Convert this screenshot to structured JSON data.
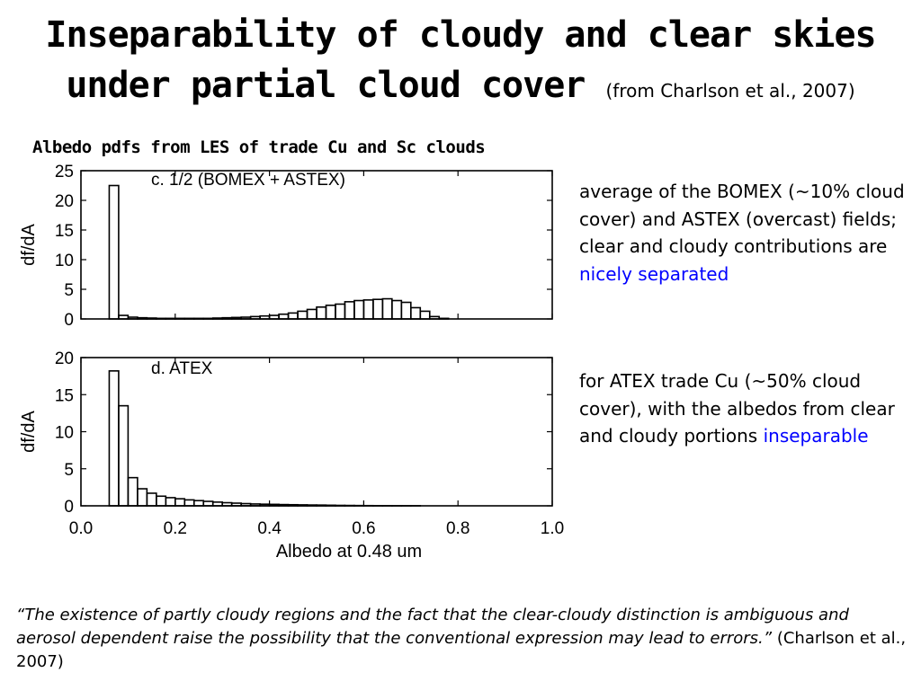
{
  "title": {
    "line1": "Inseparability of cloudy and clear skies",
    "line2": "under partial cloud cover",
    "citation": "(from Charlson et al., 2007)"
  },
  "subtitle": "Albedo pdfs from LES of trade Cu and Sc clouds",
  "notes": [
    {
      "text": "average of the BOMEX (~10% cloud cover) and ASTEX (overcast) fields; clear and cloudy contributions are ",
      "highlight": "nicely separated",
      "highlight_color": "#0000ff"
    },
    {
      "text": "for ATEX trade Cu (~50% cloud cover), with the albedos from clear and cloudy portions ",
      "highlight": "inseparable",
      "highlight_color": "#0000ff"
    }
  ],
  "quote": {
    "text": "“The existence of partly cloudy regions and the fact that the clear-cloudy distinction is ambiguous and aerosol dependent raise the possibility that the conventional expression may lead to errors.”",
    "citation": " (Charlson et al., 2007)"
  },
  "chart_data": [
    {
      "type": "histogram",
      "title": "c. 1/2 (BOMEX + ASTEX)",
      "ylabel": "df/dA",
      "xlim": [
        0,
        1.0
      ],
      "ylim": [
        0,
        25
      ],
      "yticks": [
        0,
        5,
        10,
        15,
        20,
        25
      ],
      "xticks": [
        0.0,
        0.2,
        0.4,
        0.6,
        0.8,
        1.0
      ],
      "x_tick_labels_shown": false,
      "bin_width": 0.02,
      "bins_start": [
        0.06,
        0.08,
        0.1,
        0.12,
        0.14,
        0.16,
        0.18,
        0.2,
        0.22,
        0.24,
        0.26,
        0.28,
        0.3,
        0.32,
        0.34,
        0.36,
        0.38,
        0.4,
        0.42,
        0.44,
        0.46,
        0.48,
        0.5,
        0.52,
        0.54,
        0.56,
        0.58,
        0.6,
        0.62,
        0.64,
        0.66,
        0.68,
        0.7,
        0.72,
        0.74,
        0.76,
        0.78
      ],
      "values": [
        22.5,
        0.6,
        0.3,
        0.2,
        0.15,
        0.1,
        0.1,
        0.1,
        0.1,
        0.1,
        0.1,
        0.15,
        0.2,
        0.25,
        0.3,
        0.4,
        0.5,
        0.6,
        0.8,
        1.0,
        1.3,
        1.6,
        2.0,
        2.3,
        2.5,
        2.9,
        3.1,
        3.2,
        3.3,
        3.4,
        3.1,
        2.8,
        1.9,
        1.3,
        0.4,
        0.1,
        0.0
      ]
    },
    {
      "type": "histogram",
      "title": "d. ATEX",
      "ylabel": "df/dA",
      "xlabel": "Albedo at 0.48 um",
      "xlim": [
        0,
        1.0
      ],
      "ylim": [
        0,
        20
      ],
      "yticks": [
        0,
        5,
        10,
        15,
        20
      ],
      "xticks": [
        0.0,
        0.2,
        0.4,
        0.6,
        0.8,
        1.0
      ],
      "x_tick_labels_shown": true,
      "bin_width": 0.02,
      "bins_start": [
        0.06,
        0.08,
        0.1,
        0.12,
        0.14,
        0.16,
        0.18,
        0.2,
        0.22,
        0.24,
        0.26,
        0.28,
        0.3,
        0.32,
        0.34,
        0.36,
        0.38,
        0.4,
        0.42,
        0.44,
        0.46,
        0.48,
        0.5,
        0.52,
        0.54,
        0.56,
        0.58,
        0.6,
        0.62,
        0.64,
        0.66,
        0.68,
        0.7,
        0.72
      ],
      "values": [
        18.2,
        13.5,
        3.8,
        2.3,
        1.7,
        1.3,
        1.1,
        0.95,
        0.8,
        0.7,
        0.6,
        0.5,
        0.42,
        0.36,
        0.3,
        0.25,
        0.22,
        0.2,
        0.17,
        0.15,
        0.13,
        0.11,
        0.1,
        0.08,
        0.06,
        0.05,
        0.04,
        0.03,
        0.02,
        0.02,
        0.01,
        0.01,
        0.01,
        0.0
      ]
    }
  ]
}
